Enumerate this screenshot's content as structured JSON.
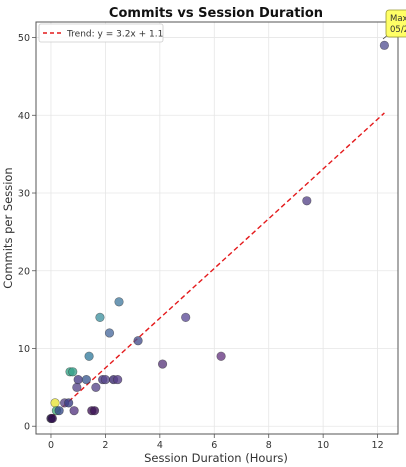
{
  "chart_data": {
    "type": "scatter",
    "title": "Commits vs Session Duration",
    "xlabel": "Session Duration (Hours)",
    "ylabel": "Commits per Session",
    "xlim": [
      -0.55,
      12.75
    ],
    "ylim": [
      -1,
      52
    ],
    "x_ticks": [
      "0",
      "2",
      "4",
      "6",
      "8",
      "10",
      "12"
    ],
    "x_tick_values": [
      0,
      2,
      4,
      6,
      8,
      10,
      12
    ],
    "y_ticks": [
      "0",
      "10",
      "20",
      "30",
      "40",
      "50"
    ],
    "y_tick_values": [
      0,
      10,
      20,
      30,
      40,
      50
    ],
    "grid": true,
    "legend_position": "top-left",
    "trend": {
      "label": "Trend: y = 3.2x + 1.1",
      "slope": 3.2,
      "intercept": 1.1,
      "x_range": [
        0.0,
        12.25
      ],
      "color": "#e41a1c"
    },
    "annotation": {
      "text_line1": "Max",
      "text_line2": "05/2",
      "x": 12.25,
      "y": 49
    },
    "points": [
      {
        "x": 0.0,
        "y": 1,
        "color": "#1f1140"
      },
      {
        "x": 0.05,
        "y": 1,
        "color": "#2d0a4e"
      },
      {
        "x": 0.15,
        "y": 3,
        "color": "#e6e33a"
      },
      {
        "x": 0.2,
        "y": 2,
        "color": "#44b07d"
      },
      {
        "x": 0.3,
        "y": 2,
        "color": "#3a4d8c"
      },
      {
        "x": 0.5,
        "y": 3,
        "color": "#5c4a8a"
      },
      {
        "x": 0.65,
        "y": 3,
        "color": "#3b3f86"
      },
      {
        "x": 0.7,
        "y": 7,
        "color": "#3aa68a"
      },
      {
        "x": 0.8,
        "y": 7,
        "color": "#38a08b"
      },
      {
        "x": 0.85,
        "y": 2,
        "color": "#5a3c84"
      },
      {
        "x": 0.95,
        "y": 5,
        "color": "#5a4a8c"
      },
      {
        "x": 1.0,
        "y": 6,
        "color": "#4a3f88"
      },
      {
        "x": 1.3,
        "y": 6,
        "color": "#3f5e94"
      },
      {
        "x": 1.4,
        "y": 9,
        "color": "#3a7fa0"
      },
      {
        "x": 1.5,
        "y": 2,
        "color": "#451a5c"
      },
      {
        "x": 1.6,
        "y": 2,
        "color": "#3d1656"
      },
      {
        "x": 1.65,
        "y": 5,
        "color": "#5a4a8c"
      },
      {
        "x": 1.8,
        "y": 14,
        "color": "#4595a2"
      },
      {
        "x": 1.9,
        "y": 6,
        "color": "#4c3a86"
      },
      {
        "x": 2.0,
        "y": 6,
        "color": "#5a4a8c"
      },
      {
        "x": 2.15,
        "y": 12,
        "color": "#4e6ea0"
      },
      {
        "x": 2.3,
        "y": 6,
        "color": "#3c2c70"
      },
      {
        "x": 2.45,
        "y": 6,
        "color": "#57408a"
      },
      {
        "x": 2.5,
        "y": 16,
        "color": "#4a7fa2"
      },
      {
        "x": 3.2,
        "y": 11,
        "color": "#4a5490"
      },
      {
        "x": 4.1,
        "y": 8,
        "color": "#5e3e80"
      },
      {
        "x": 4.95,
        "y": 14,
        "color": "#60509a"
      },
      {
        "x": 6.25,
        "y": 9,
        "color": "#6a3c84"
      },
      {
        "x": 9.4,
        "y": 29,
        "color": "#5a4a8c"
      },
      {
        "x": 12.25,
        "y": 49,
        "color": "#5a5896"
      }
    ]
  }
}
